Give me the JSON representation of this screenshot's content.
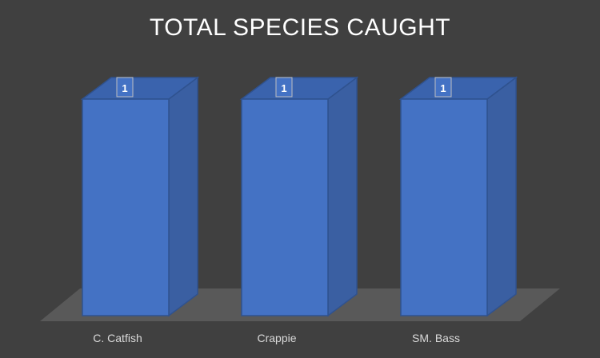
{
  "chart_data": {
    "type": "bar",
    "style": "3d-column",
    "title": "TOTAL SPECIES CAUGHT",
    "categories": [
      "C. Catfish",
      "Crappie",
      "SM. Bass"
    ],
    "series": [
      {
        "values": [
          1,
          1,
          1
        ],
        "color": "#4472C4"
      }
    ],
    "data_labels": [
      "1",
      "1",
      "1"
    ],
    "ylim": [
      0,
      1
    ],
    "grid": false,
    "legend": "none"
  },
  "colors": {
    "background": "#404040",
    "floor": "#595959",
    "bar_front": "#4472C4",
    "bar_side": "#3A5FA2",
    "bar_top": "#3A63AD",
    "bar_edge": "#2F528F",
    "text": "#FFFFFF",
    "category_text": "#D9D9D9"
  }
}
